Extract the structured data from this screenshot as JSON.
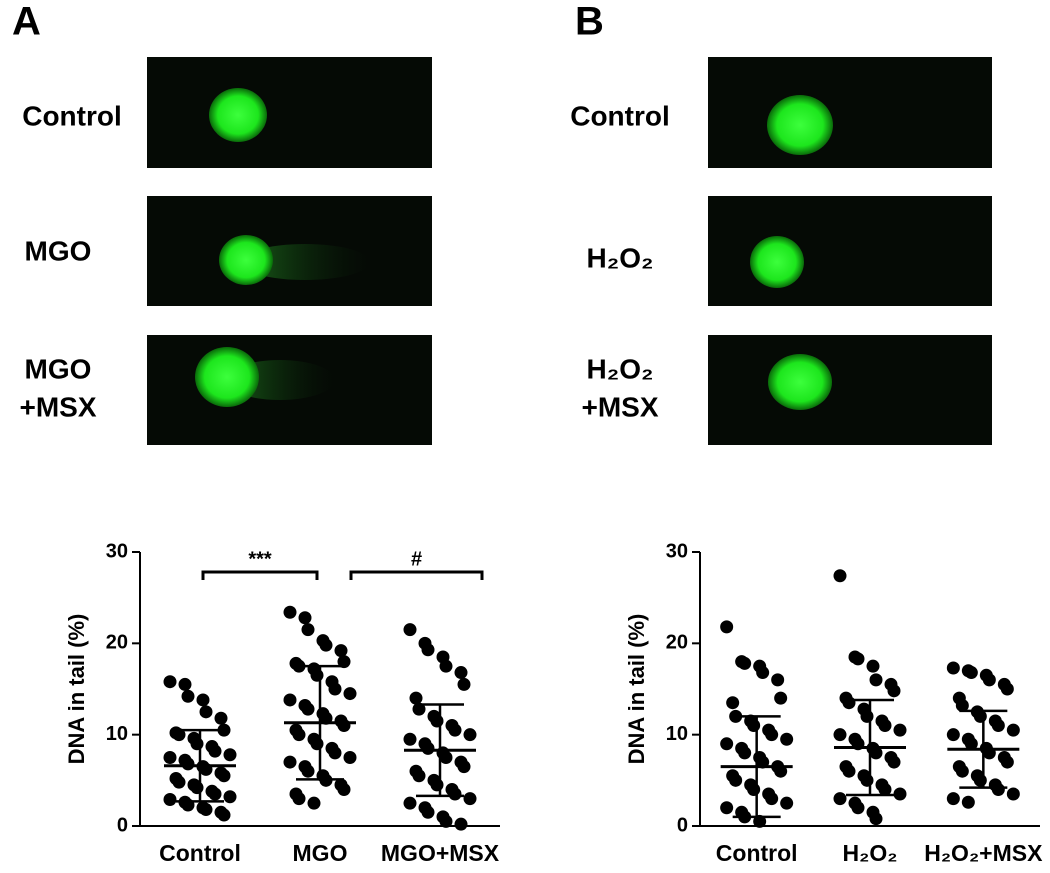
{
  "panels": [
    {
      "letter": "A",
      "rows": [
        [
          "Control"
        ],
        [
          "MGO"
        ],
        [
          "MGO",
          "+MSX"
        ]
      ]
    },
    {
      "letter": "B",
      "rows": [
        [
          "Control"
        ],
        [
          "H₂O₂"
        ],
        [
          "H₂O₂",
          "+MSX"
        ]
      ]
    }
  ],
  "chart_data": [
    {
      "type": "dotplot",
      "ylabel": "DNA in tail (%)",
      "categories": [
        "Control",
        "MGO",
        "MGO+MSX"
      ],
      "values": [
        [
          15.8,
          15.5,
          14.2,
          13.8,
          12.5,
          11.8,
          10.5,
          10.2,
          10.0,
          9.6,
          9.0,
          8.7,
          8.2,
          7.8,
          7.5,
          7.2,
          6.8,
          6.5,
          6.2,
          5.8,
          5.5,
          5.2,
          4.8,
          4.5,
          4.2,
          3.8,
          3.5,
          3.2,
          2.9,
          2.6,
          2.3,
          2.0,
          1.8,
          1.5,
          1.2
        ],
        [
          23.4,
          22.8,
          21.5,
          20.3,
          19.8,
          19.2,
          18.0,
          17.8,
          17.5,
          17.2,
          16.5,
          15.8,
          15.0,
          14.5,
          13.8,
          13.2,
          12.8,
          12.3,
          11.8,
          11.5,
          11.0,
          10.5,
          10.0,
          9.5,
          9.0,
          8.5,
          8.0,
          7.5,
          7.0,
          6.5,
          6.0,
          5.5,
          5.0,
          4.5,
          4.0,
          3.5,
          3.0,
          2.5
        ],
        [
          21.5,
          20.0,
          19.3,
          18.5,
          17.5,
          16.8,
          15.5,
          14.0,
          12.8,
          12.0,
          11.5,
          11.0,
          10.5,
          10.0,
          9.5,
          9.0,
          8.5,
          8.0,
          7.5,
          7.0,
          6.5,
          6.0,
          5.5,
          5.0,
          4.5,
          4.0,
          3.5,
          3.0,
          2.5,
          2.0,
          1.5,
          1.0,
          0.5,
          0.2
        ]
      ],
      "means": [
        6.6,
        11.3,
        8.3
      ],
      "sd": [
        3.9,
        6.2,
        5.0
      ],
      "ylim": [
        0,
        30
      ],
      "yticks": [
        0,
        10,
        20,
        30
      ],
      "color": "#000000",
      "annotations": [
        {
          "text": "***",
          "span": [
            0,
            1
          ]
        },
        {
          "text": "#",
          "span": [
            1,
            2
          ]
        }
      ]
    },
    {
      "type": "dotplot",
      "ylabel": "DNA in tail (%)",
      "categories": [
        "Control",
        "H₂O₂",
        "H₂O₂+MSX"
      ],
      "values": [
        [
          21.8,
          18.0,
          17.8,
          17.5,
          16.8,
          16.0,
          14.0,
          13.5,
          12.0,
          11.5,
          11.0,
          10.5,
          10.0,
          9.5,
          9.0,
          8.5,
          8.0,
          7.5,
          7.0,
          6.5,
          6.0,
          5.5,
          5.0,
          4.5,
          4.0,
          3.5,
          3.0,
          2.5,
          2.0,
          1.5,
          1.0,
          0.5
        ],
        [
          27.4,
          18.5,
          18.3,
          17.5,
          16.0,
          15.5,
          14.8,
          14.0,
          13.5,
          12.8,
          12.0,
          11.5,
          11.0,
          10.5,
          10.0,
          9.5,
          9.0,
          8.5,
          8.0,
          7.5,
          7.0,
          6.5,
          6.0,
          5.5,
          5.0,
          4.5,
          4.0,
          3.5,
          3.0,
          2.5,
          2.0,
          1.5,
          0.8
        ],
        [
          17.3,
          17.0,
          16.8,
          16.5,
          16.0,
          15.5,
          15.0,
          14.0,
          13.2,
          12.5,
          12.0,
          11.5,
          11.0,
          10.5,
          10.0,
          9.5,
          9.0,
          8.5,
          8.0,
          7.5,
          7.0,
          6.5,
          6.0,
          5.5,
          5.0,
          4.5,
          4.0,
          3.5,
          3.0,
          2.6
        ]
      ],
      "means": [
        6.5,
        8.6,
        8.4
      ],
      "sd": [
        5.5,
        5.2,
        4.2
      ],
      "ylim": [
        0,
        30
      ],
      "yticks": [
        0,
        10,
        20,
        30
      ],
      "color": "#000000",
      "annotations": []
    }
  ]
}
